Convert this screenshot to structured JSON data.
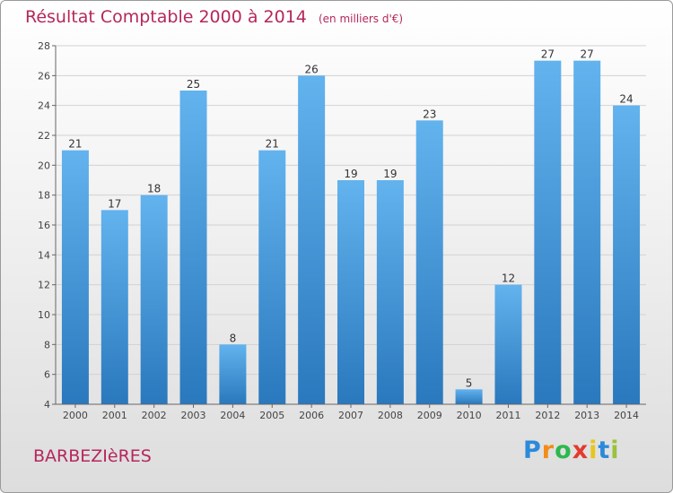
{
  "header": {
    "title": "Résultat Comptable 2000 à 2014",
    "unit": "(en milliers d'€)"
  },
  "footer": {
    "commune": "BARBEZIèRES",
    "logo_letters": [
      "P",
      "r",
      "o",
      "x",
      "i",
      "t",
      "i"
    ],
    "logo_colors": [
      "#2b8ad9",
      "#f28c1a",
      "#2db84d",
      "#e23b2e",
      "#e8c51c",
      "#2b8ad9",
      "#9ac23c"
    ]
  },
  "colors": {
    "title": "#b5275b",
    "bar_light": "#62b3ee",
    "bar_dark": "#2a78bd"
  },
  "chart_data": {
    "type": "bar",
    "title": "Résultat Comptable 2000 à 2014",
    "xlabel": "",
    "ylabel": "",
    "categories": [
      "2000",
      "2001",
      "2002",
      "2003",
      "2004",
      "2005",
      "2006",
      "2007",
      "2008",
      "2009",
      "2010",
      "2011",
      "2012",
      "2013",
      "2014"
    ],
    "values": [
      21,
      17,
      18,
      25,
      8,
      21,
      26,
      19,
      19,
      23,
      5,
      12,
      27,
      27,
      24
    ],
    "ylim": [
      4,
      28
    ],
    "yticks": [
      4,
      6,
      8,
      10,
      12,
      14,
      16,
      18,
      20,
      22,
      24,
      26,
      28
    ],
    "grid": true,
    "legend": "none"
  }
}
